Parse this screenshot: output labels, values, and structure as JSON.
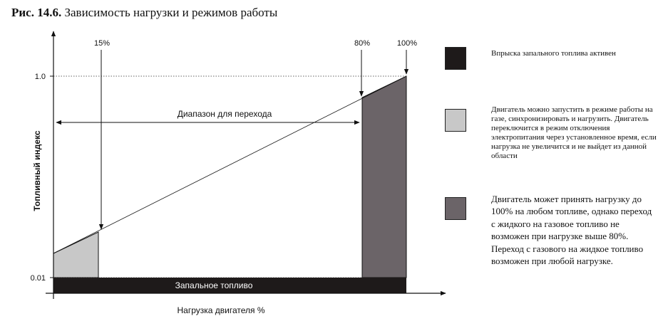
{
  "title": {
    "number": "Рис. 14.6.",
    "text": "Зависимость нагрузки и режимов работы"
  },
  "diagram": {
    "y_axis_label": "Топливный индекс",
    "x_axis_label": "Нагрузка двигателя %",
    "y_tick_top": "1.0",
    "y_tick_bottom": "0.01",
    "marker_15": "15%",
    "marker_80": "80%",
    "marker_100": "100%",
    "range_label": "Диапазон для перехода",
    "pilot_fuel_label": "Запальное топливо",
    "colors": {
      "pilot_fuel": "#1e1a1a",
      "light_region": "#c8c8c8",
      "dark_region": "#6b6468"
    }
  },
  "legend": [
    {
      "color": "#1e1a1a",
      "text": "Впрыска запального топлива активен"
    },
    {
      "color": "#c8c8c8",
      "text": "Двигатель можно запустить в режиме работы на газе, синхронизировать и нагрузить. Двигатель переключится в режим отключения электропитания через установленное время, если нагрузка не увеличится и не выйдет из данной области"
    },
    {
      "color": "#6b6468",
      "text": "Двигатель может принять нагрузку до 100% на любом топливе, однако переход с жидкого на газовое топливо не возможен при нагрузке выше 80%. Переход с газового на жидкое топливо возможен при любой нагрузке."
    }
  ]
}
